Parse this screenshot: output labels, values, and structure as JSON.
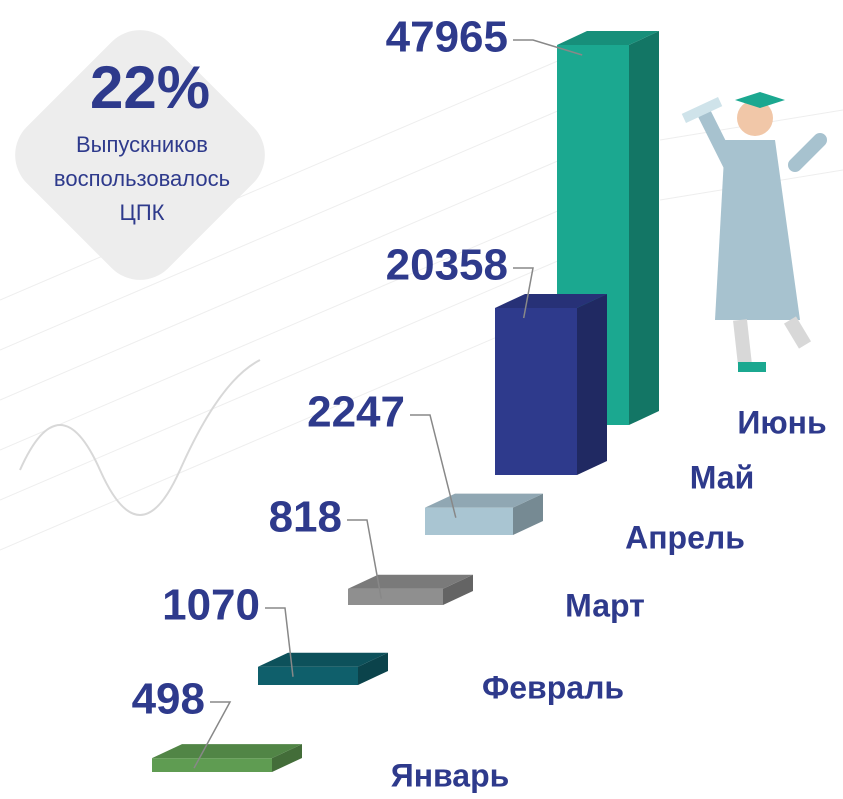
{
  "chart_data": {
    "type": "bar3d",
    "categories": [
      "Январь",
      "Февраль",
      "Март",
      "Апрель",
      "Май",
      "Июнь"
    ],
    "values": [
      498,
      1070,
      818,
      2247,
      20358,
      47965
    ],
    "colors": [
      "#5f9c52",
      "#0f5f6b",
      "#8f8f8f",
      "#a9c5d2",
      "#2e3a8c",
      "#1ba890"
    ],
    "badge": {
      "value": "22%",
      "lines": [
        "Выпускников",
        "воспользовалось",
        "ЦПК"
      ]
    }
  }
}
